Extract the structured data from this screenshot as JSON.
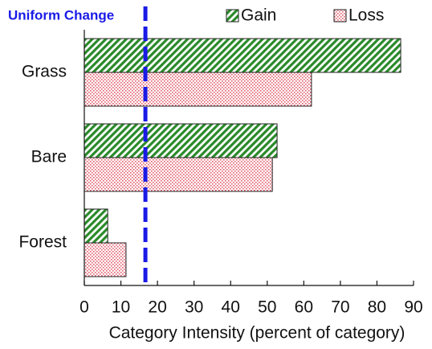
{
  "chart_data": {
    "type": "hbar",
    "xlabel": "Category Intensity (percent of category)",
    "categories": [
      "Grass",
      "Bare",
      "Forest"
    ],
    "series": [
      {
        "name": "Gain",
        "color": "#2a8a2a",
        "pattern": "hatch",
        "values": [
          86.5,
          52.7,
          6.4
        ]
      },
      {
        "name": "Loss",
        "color": "#e05a6a",
        "pattern": "dots",
        "values": [
          62.1,
          51.4,
          11.4
        ]
      }
    ],
    "reference_line": {
      "label": "Uniform Change",
      "value": 16.7,
      "color": "#1a1ae6"
    },
    "xlim": [
      0,
      90
    ],
    "xticks": [
      0,
      10,
      20,
      30,
      40,
      50,
      60,
      70,
      80,
      90
    ],
    "legend": "top"
  }
}
